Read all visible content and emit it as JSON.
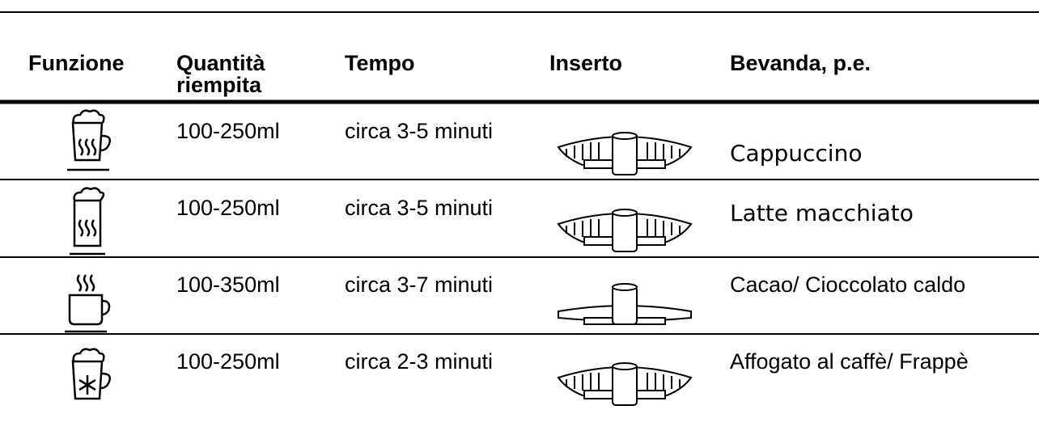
{
  "table": {
    "header": [
      "Funzione",
      "Quantità riempita",
      "Tempo",
      "Inserto",
      "Bevanda, p.e."
    ],
    "rows": [
      {
        "quantity": "100-250ml",
        "time": "circa 3-5 minuti",
        "drink": "Cappuccino"
      },
      {
        "quantity": "100-250ml",
        "time": "circa 3-5 minuti",
        "drink": "Latte macchiato"
      },
      {
        "quantity": "100-350ml",
        "time": "circa 3-7 minuti",
        "drink": "Cacao/ Cioccolato caldo"
      },
      {
        "quantity": "100-250ml",
        "time": "circa 2-3 minuti",
        "drink": "Affogato al caffè/ Frappè"
      }
    ]
  }
}
